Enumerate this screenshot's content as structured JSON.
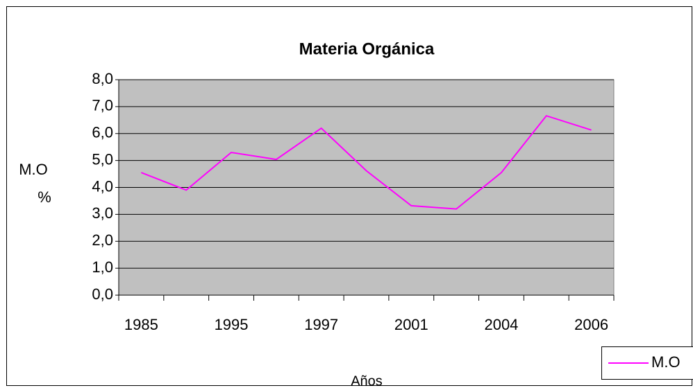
{
  "chart_data": {
    "type": "line",
    "title": "Materia Orgánica",
    "xlabel": "Años",
    "ylabel": [
      "M.O",
      "%"
    ],
    "categories": [
      "1985",
      null,
      "1995",
      null,
      "1997",
      null,
      "2001",
      null,
      "2004",
      null,
      "2006"
    ],
    "series": [
      {
        "name": "M.O",
        "color": "#ff00ff",
        "values": [
          4.55,
          3.9,
          5.3,
          5.04,
          6.2,
          4.62,
          3.32,
          3.2,
          4.55,
          6.66,
          6.13
        ]
      }
    ],
    "ylim": [
      0,
      8
    ],
    "yticks": [
      {
        "value": 0,
        "label": "0,0"
      },
      {
        "value": 1,
        "label": "1,0"
      },
      {
        "value": 2,
        "label": "2,0"
      },
      {
        "value": 3,
        "label": "3,0"
      },
      {
        "value": 4,
        "label": "4,0"
      },
      {
        "value": 5,
        "label": "5,0"
      },
      {
        "value": 6,
        "label": "6,0"
      },
      {
        "value": 7,
        "label": "7,0"
      },
      {
        "value": 8,
        "label": "8,0"
      }
    ],
    "grid": true,
    "plot_background": "#c0c0c0",
    "legend": "bottom-right"
  }
}
